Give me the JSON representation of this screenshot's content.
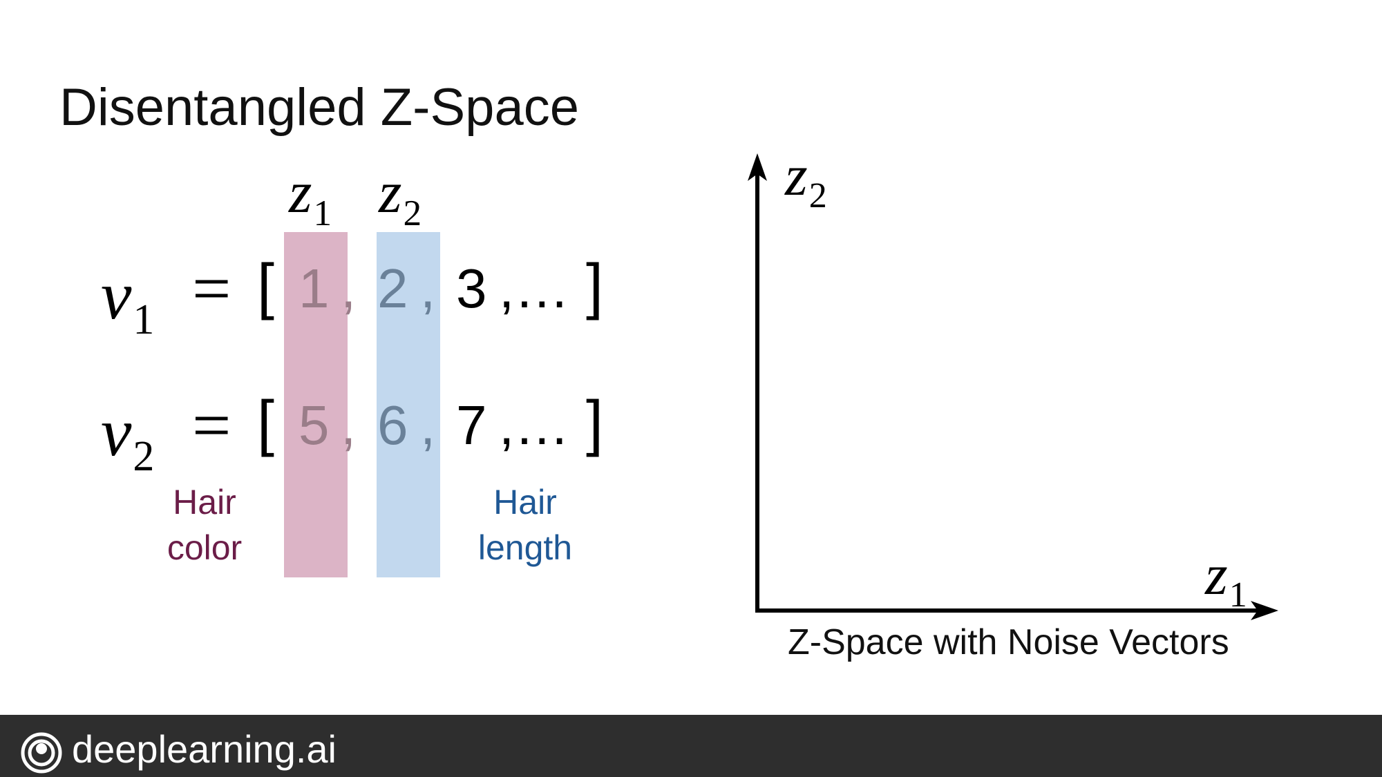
{
  "slide": {
    "title": "Disentangled Z-Space"
  },
  "matrix": {
    "col_headers": {
      "z1_base": "z",
      "z1_sub": "1",
      "z2_base": "z",
      "z2_sub": "2"
    },
    "rows": [
      {
        "var_base": "v",
        "var_sub": "1",
        "equals": "=",
        "open": "[",
        "values": [
          "1",
          "2",
          "3"
        ],
        "sep": ",",
        "ellipsis": ",…",
        "close": "]"
      },
      {
        "var_base": "v",
        "var_sub": "2",
        "equals": "=",
        "open": "[",
        "values": [
          "5",
          "6",
          "7"
        ],
        "sep": ",",
        "ellipsis": ",…",
        "close": "]"
      }
    ],
    "captions": {
      "hair_color": [
        "Hair",
        "color"
      ],
      "hair_length": [
        "Hair",
        "length"
      ]
    },
    "colors": {
      "pink_band": "#dcb4c6",
      "blue_band": "#c2d8ee",
      "hair_color_text": "#6b1d48",
      "hair_length_text": "#1f5895"
    }
  },
  "plot": {
    "y_axis_base": "z",
    "y_axis_sub": "2",
    "x_axis_base": "z",
    "x_axis_sub": "1",
    "caption": "Z-Space with Noise Vectors"
  },
  "footer": {
    "brand": "deeplearning.ai",
    "icon": "deeplearning-logo-icon",
    "background": "#2e2e2e"
  }
}
